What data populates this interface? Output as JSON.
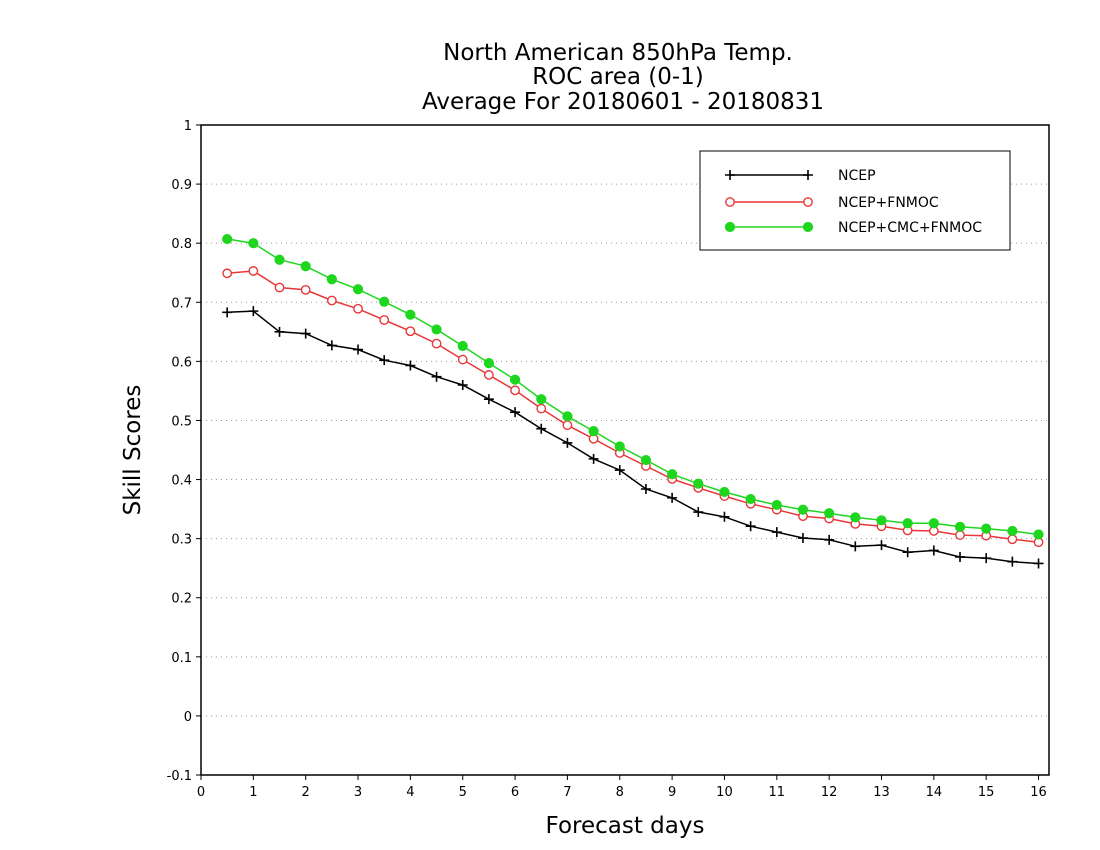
{
  "chart_data": {
    "type": "line",
    "title_lines": [
      "North American 850hPa Temp.",
      "ROC area (0-1)",
      "Average For 20180601 - 20180831"
    ],
    "xlabel": "Forecast days",
    "ylabel": "Skill Scores",
    "xlim": [
      0,
      16.2
    ],
    "ylim": [
      -0.1,
      1
    ],
    "x_ticks": [
      0,
      1,
      2,
      3,
      4,
      5,
      6,
      7,
      8,
      9,
      10,
      11,
      12,
      13,
      14,
      15,
      16
    ],
    "x_tick_labels": [
      "0",
      "1",
      "2",
      "3",
      "4",
      "5",
      "6",
      "7",
      "8",
      "9",
      "10",
      "11",
      "12",
      "13",
      "14",
      "15",
      "16"
    ],
    "y_ticks": [
      -0.1,
      0,
      0.1,
      0.2,
      0.3,
      0.4,
      0.5,
      0.6,
      0.7,
      0.8,
      0.9,
      1
    ],
    "y_tick_labels": [
      "-0.1",
      "0",
      "0.1",
      "0.2",
      "0.3",
      "0.4",
      "0.5",
      "0.6",
      "0.7",
      "0.8",
      "0.9",
      "1"
    ],
    "grid": "horizontal dotted",
    "legend_position": "top-right",
    "x": [
      0.5,
      1,
      1.5,
      2,
      2.5,
      3,
      3.5,
      4,
      4.5,
      5,
      5.5,
      6,
      6.5,
      7,
      7.5,
      8,
      8.5,
      9,
      9.5,
      10,
      10.5,
      11,
      11.5,
      12,
      12.5,
      13,
      13.5,
      14,
      14.5,
      15,
      15.5,
      16
    ],
    "series": [
      {
        "name": "NCEP",
        "color": "#000000",
        "marker": "plus",
        "values": [
          0.683,
          0.685,
          0.65,
          0.647,
          0.627,
          0.62,
          0.602,
          0.593,
          0.574,
          0.56,
          0.536,
          0.514,
          0.486,
          0.462,
          0.435,
          0.416,
          0.384,
          0.369,
          0.345,
          0.337,
          0.321,
          0.311,
          0.301,
          0.298,
          0.287,
          0.289,
          0.277,
          0.28,
          0.269,
          0.267,
          0.261,
          0.258
        ]
      },
      {
        "name": "NCEP+FNMOC",
        "color": "#e8373a",
        "marker": "open-circle",
        "values": [
          0.749,
          0.753,
          0.725,
          0.721,
          0.703,
          0.689,
          0.67,
          0.651,
          0.63,
          0.603,
          0.577,
          0.551,
          0.52,
          0.492,
          0.469,
          0.445,
          0.423,
          0.401,
          0.386,
          0.372,
          0.359,
          0.349,
          0.338,
          0.334,
          0.325,
          0.321,
          0.314,
          0.313,
          0.306,
          0.305,
          0.299,
          0.294
        ]
      },
      {
        "name": "NCEP+CMC+FNMOC",
        "color": "#1fd61f",
        "marker": "filled-circle",
        "values": [
          0.807,
          0.8,
          0.772,
          0.761,
          0.739,
          0.722,
          0.701,
          0.679,
          0.654,
          0.626,
          0.597,
          0.569,
          0.536,
          0.507,
          0.482,
          0.456,
          0.433,
          0.409,
          0.393,
          0.379,
          0.367,
          0.357,
          0.349,
          0.343,
          0.336,
          0.331,
          0.326,
          0.326,
          0.32,
          0.317,
          0.313,
          0.307
        ]
      }
    ]
  }
}
